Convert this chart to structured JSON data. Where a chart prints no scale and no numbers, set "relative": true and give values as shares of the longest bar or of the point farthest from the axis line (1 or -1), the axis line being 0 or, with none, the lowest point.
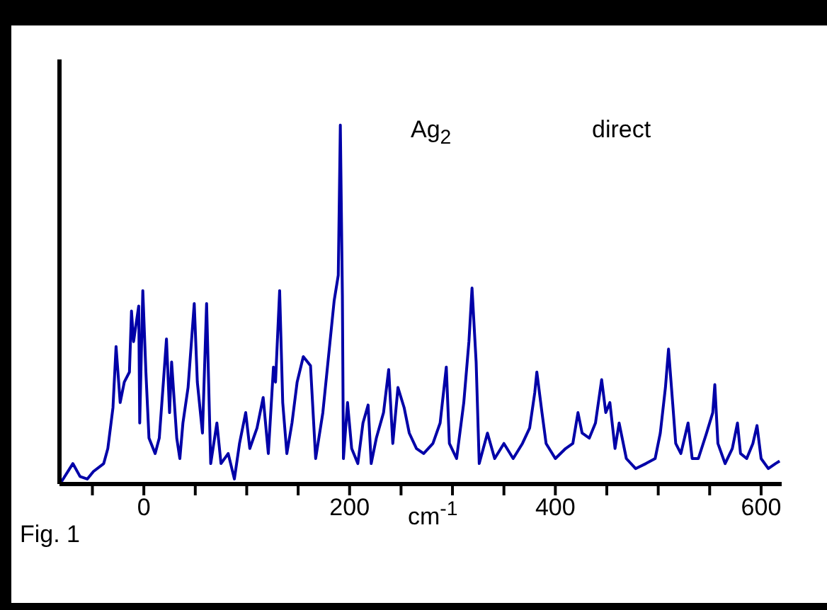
{
  "chart_data": {
    "type": "line",
    "relative": true,
    "xlabel": "cm$^{-1}$",
    "annotations": [
      "Ag$_{2}$",
      "direct",
      "Fig. 1"
    ],
    "xlim": [
      -82,
      620
    ],
    "xticks": [
      {
        "value": -50,
        "label": null
      },
      0,
      {
        "value": 50,
        "label": null
      },
      {
        "value": 100,
        "label": null
      },
      {
        "value": 150,
        "label": null
      },
      200,
      {
        "value": 250,
        "label": null
      },
      {
        "value": 300,
        "label": null
      },
      {
        "value": 350,
        "label": null
      },
      400,
      {
        "value": 450,
        "label": null
      },
      {
        "value": 500,
        "label": null
      },
      {
        "value": 550,
        "label": null
      },
      600
    ],
    "marker": "none",
    "grid": false,
    "legend": false,
    "x": [
      -80,
      -69,
      -62,
      -55,
      -49,
      -39,
      -35,
      -30,
      -27,
      -23,
      -19,
      -14,
      -12,
      -10,
      -5,
      -4,
      -1,
      2,
      5,
      11,
      15,
      19,
      22,
      25,
      27,
      32,
      35,
      38,
      43,
      49,
      52,
      57,
      61,
      65,
      71,
      75,
      82,
      88,
      93,
      99,
      103,
      110,
      116,
      121,
      126,
      128,
      132,
      135,
      139,
      144,
      149,
      155,
      162,
      167,
      174,
      180,
      185,
      189,
      191,
      193,
      194,
      198,
      202,
      208,
      213,
      218,
      221,
      226,
      233,
      238,
      242,
      247,
      253,
      258,
      265,
      272,
      281,
      288,
      294,
      297,
      304,
      311,
      316,
      319,
      323,
      326,
      334,
      341,
      350,
      359,
      368,
      375,
      380,
      382,
      387,
      391,
      400,
      410,
      417,
      422,
      426,
      433,
      439,
      445,
      449,
      453,
      458,
      462,
      469,
      478,
      488,
      497,
      502,
      507,
      510,
      514,
      517,
      522,
      529,
      533,
      539,
      547,
      553,
      555,
      558,
      565,
      572,
      577,
      580,
      586,
      592,
      596,
      600,
      607,
      614,
      618
    ],
    "series": [
      {
        "color": "#0000a8",
        "values": [
          0.007,
          0.057,
          0.021,
          0.014,
          0.035,
          0.057,
          0.099,
          0.213,
          0.383,
          0.227,
          0.284,
          0.312,
          0.482,
          0.397,
          0.496,
          0.17,
          0.539,
          0.312,
          0.128,
          0.085,
          0.128,
          0.284,
          0.404,
          0.199,
          0.34,
          0.128,
          0.071,
          0.17,
          0.269,
          0.503,
          0.284,
          0.142,
          0.503,
          0.057,
          0.17,
          0.057,
          0.085,
          0.014,
          0.113,
          0.199,
          0.099,
          0.156,
          0.241,
          0.085,
          0.326,
          0.284,
          0.539,
          0.227,
          0.085,
          0.17,
          0.284,
          0.355,
          0.33,
          0.071,
          0.199,
          0.369,
          0.511,
          0.582,
          1.0,
          0.525,
          0.071,
          0.227,
          0.099,
          0.057,
          0.17,
          0.22,
          0.057,
          0.128,
          0.199,
          0.319,
          0.113,
          0.269,
          0.213,
          0.142,
          0.099,
          0.085,
          0.113,
          0.17,
          0.326,
          0.113,
          0.071,
          0.227,
          0.397,
          0.546,
          0.34,
          0.057,
          0.142,
          0.071,
          0.113,
          0.071,
          0.113,
          0.156,
          0.255,
          0.312,
          0.199,
          0.113,
          0.071,
          0.099,
          0.113,
          0.199,
          0.142,
          0.128,
          0.17,
          0.291,
          0.199,
          0.227,
          0.099,
          0.17,
          0.071,
          0.043,
          0.057,
          0.071,
          0.142,
          0.269,
          0.376,
          0.227,
          0.113,
          0.085,
          0.17,
          0.071,
          0.071,
          0.142,
          0.199,
          0.277,
          0.113,
          0.057,
          0.099,
          0.17,
          0.085,
          0.071,
          0.113,
          0.163,
          0.071,
          0.043,
          0.057,
          0.064
        ]
      }
    ]
  }
}
